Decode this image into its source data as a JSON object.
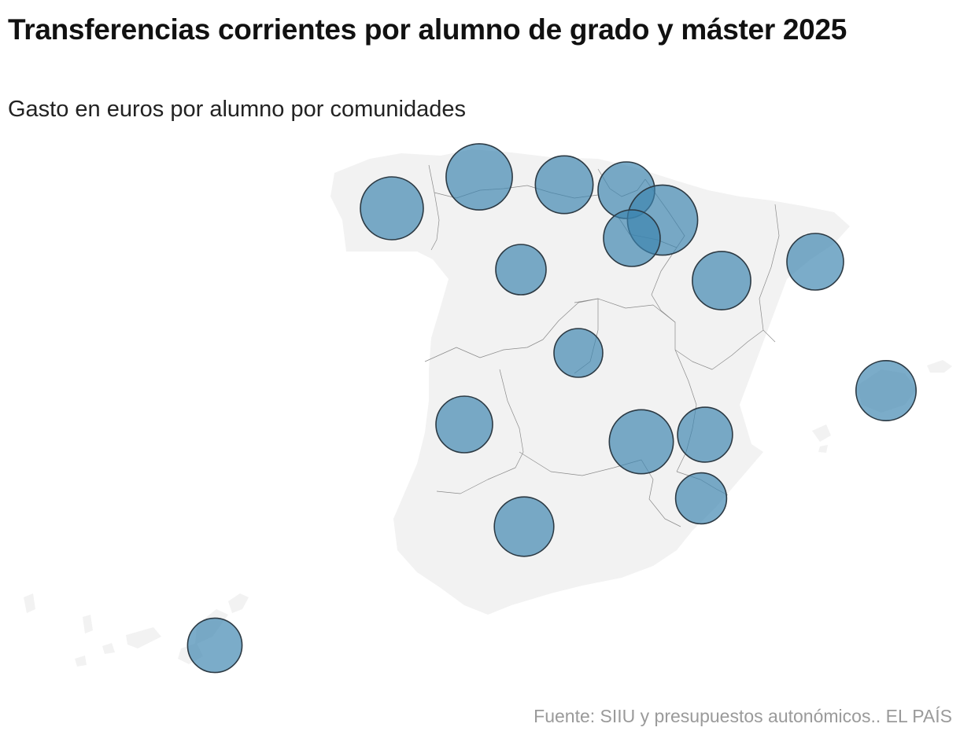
{
  "header": {
    "title": "Transferencias corrientes por alumno de grado y máster 2025",
    "subtitle": "Gasto en euros por alumno por comunidades"
  },
  "footer": {
    "source": "Fuente: SIIU y presupuestos autonómicos.. EL PAÍS"
  },
  "map": {
    "land_color": "#f2f2f2",
    "border_color": "#8a8a8a",
    "bubble_fill": "#3d85b0",
    "bubble_stroke": "#2c3a44",
    "bubbles": [
      {
        "region": "galicia",
        "relative_size": 1.11
      },
      {
        "region": "asturias",
        "relative_size": 1.17
      },
      {
        "region": "cantabria",
        "relative_size": 1.02
      },
      {
        "region": "pais-vasco",
        "relative_size": 1.0
      },
      {
        "region": "navarra",
        "relative_size": 1.24
      },
      {
        "region": "la-rioja",
        "relative_size": 1.0
      },
      {
        "region": "castilla-y-leon",
        "relative_size": 0.89
      },
      {
        "region": "aragon",
        "relative_size": 1.03
      },
      {
        "region": "cataluna",
        "relative_size": 1.0
      },
      {
        "region": "madrid",
        "relative_size": 0.86
      },
      {
        "region": "extremadura",
        "relative_size": 1.0
      },
      {
        "region": "castilla-la-mancha",
        "relative_size": 1.13
      },
      {
        "region": "comunidad-valenciana",
        "relative_size": 0.97
      },
      {
        "region": "murcia",
        "relative_size": 0.9
      },
      {
        "region": "andalucia",
        "relative_size": 1.05
      },
      {
        "region": "baleares",
        "relative_size": 1.06
      },
      {
        "region": "canarias",
        "relative_size": 0.96
      }
    ]
  }
}
